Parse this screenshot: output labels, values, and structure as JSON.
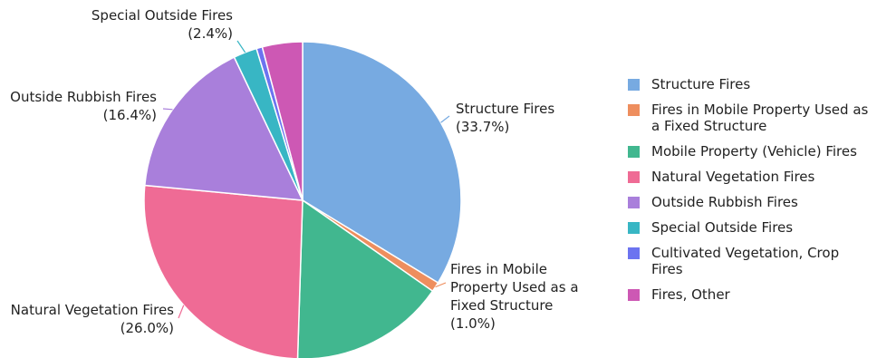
{
  "chart_data": {
    "type": "pie",
    "title": "",
    "slices": [
      {
        "name": "Structure Fires",
        "label_lines": [
          "Structure Fires",
          "(33.7%)"
        ],
        "legend_lines": [
          "Structure Fires"
        ],
        "value": 33.7,
        "color": "#77aae1"
      },
      {
        "name": "Fires in Mobile Property Used as a Fixed Structure",
        "label_lines": [
          "Fires in Mobile",
          "Property Used as a",
          "Fixed Structure",
          "(1.0%)"
        ],
        "legend_lines": [
          "Fires in Mobile Property Used as",
          "a Fixed Structure"
        ],
        "value": 1.0,
        "color": "#ee8e5e"
      },
      {
        "name": "Mobile Property (Vehicle) Fires",
        "label_lines": [],
        "legend_lines": [
          "Mobile Property (Vehicle) Fires"
        ],
        "value": 15.8,
        "color": "#41b78f"
      },
      {
        "name": "Natural Vegetation Fires",
        "label_lines": [
          "Natural Vegetation Fires",
          "(26.0%)"
        ],
        "legend_lines": [
          "Natural Vegetation Fires"
        ],
        "value": 26.0,
        "color": "#ef6b95"
      },
      {
        "name": "Outside Rubbish Fires",
        "label_lines": [
          "Outside Rubbish Fires",
          "(16.4%)"
        ],
        "legend_lines": [
          "Outside Rubbish Fires"
        ],
        "value": 16.4,
        "color": "#a97fdb"
      },
      {
        "name": "Special Outside Fires",
        "label_lines": [
          "Special Outside Fires",
          "(2.4%)"
        ],
        "legend_lines": [
          "Special Outside Fires"
        ],
        "value": 2.4,
        "color": "#38b6c4"
      },
      {
        "name": "Cultivated Vegetation, Crop Fires",
        "label_lines": [],
        "legend_lines": [
          "Cultivated Vegetation, Crop",
          "Fires"
        ],
        "value": 0.6,
        "color": "#6c73f0"
      },
      {
        "name": "Fires, Other",
        "label_lines": [],
        "legend_lines": [
          "Fires, Other"
        ],
        "value": 4.1,
        "color": "#cd58b4"
      }
    ],
    "legend_position": "right"
  }
}
